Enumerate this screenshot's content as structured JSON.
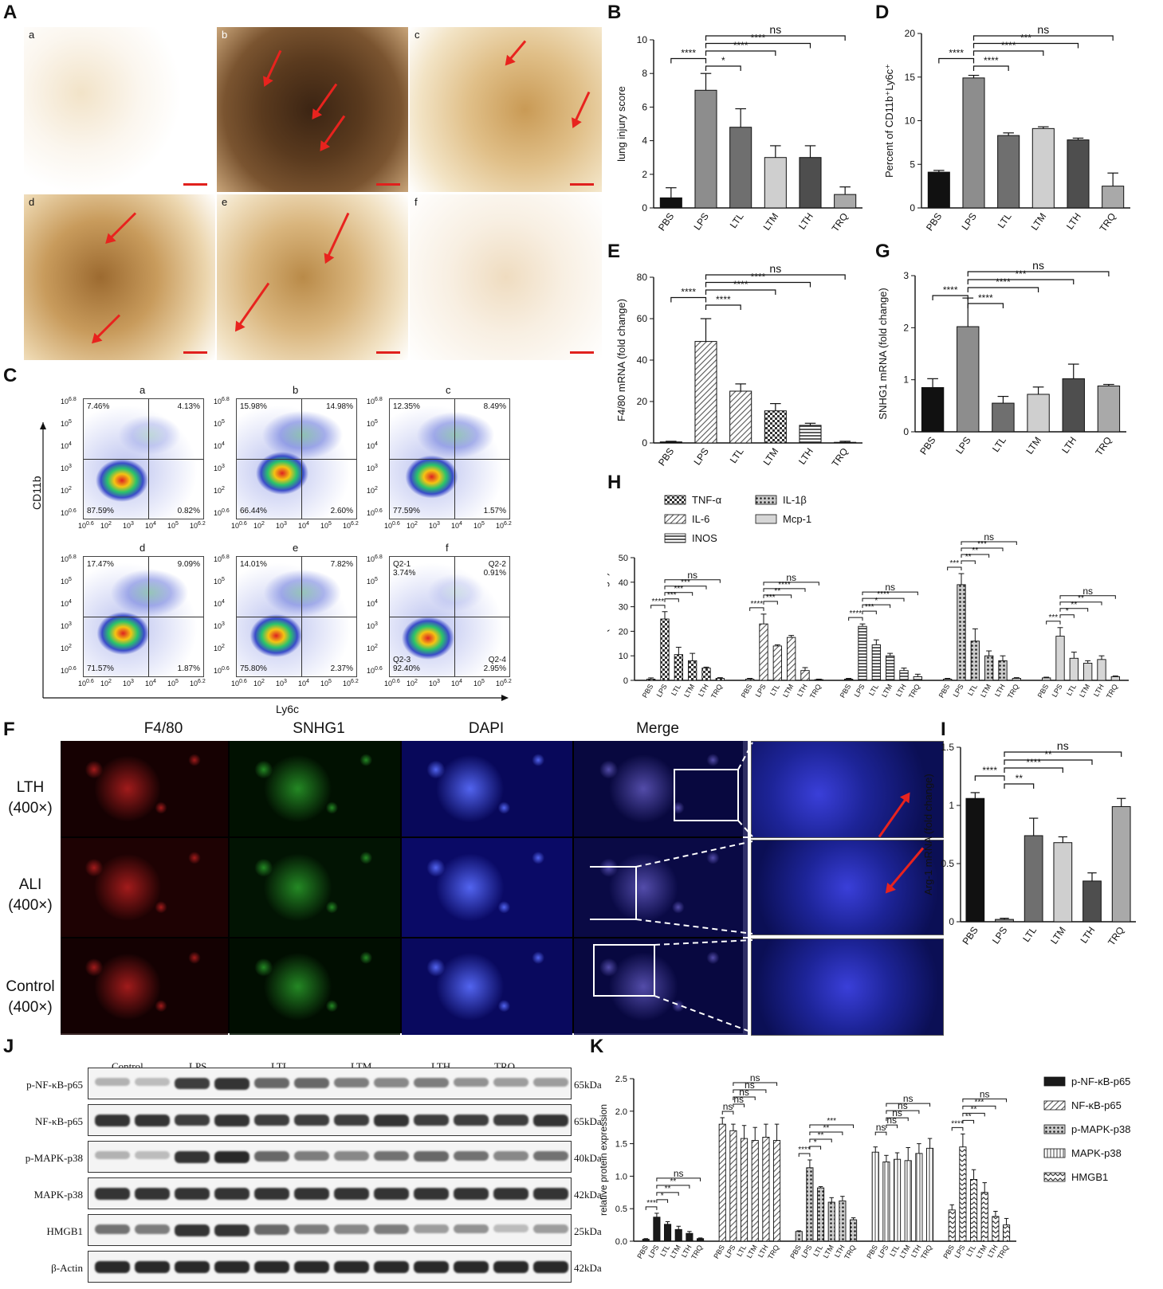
{
  "panels": {
    "A": {
      "label": "A",
      "sublabels": [
        "a",
        "b",
        "c",
        "d",
        "e",
        "f"
      ]
    },
    "B": {
      "label": "B"
    },
    "C": {
      "label": "C",
      "sublabels": [
        "a",
        "b",
        "c",
        "d",
        "e",
        "f"
      ],
      "ylabel": "CD11b",
      "xlabel": "Ly6c",
      "quadrants": [
        {
          "ul": "7.46%",
          "ur": "4.13%",
          "ll": "87.59%",
          "lr": "0.82%"
        },
        {
          "ul": "15.98%",
          "ur": "14.98%",
          "ll": "66.44%",
          "lr": "2.60%"
        },
        {
          "ul": "12.35%",
          "ur": "8.49%",
          "ll": "77.59%",
          "lr": "1.57%"
        },
        {
          "ul": "17.47%",
          "ur": "9.09%",
          "ll": "71.57%",
          "lr": "1.87%"
        },
        {
          "ul": "14.01%",
          "ur": "7.82%",
          "ll": "75.80%",
          "lr": "2.37%"
        },
        {
          "ul": "Q2-1\n3.74%",
          "ur": "Q2-2\n0.91%",
          "ll": "Q2-3\n92.40%",
          "lr": "Q2-4\n2.95%"
        }
      ],
      "yticks": [
        "10",
        "10",
        "10",
        "10",
        "10",
        "10"
      ],
      "xticks": [
        "10",
        "10",
        "10",
        "10",
        "10",
        "10"
      ]
    },
    "D": {
      "label": "D"
    },
    "E": {
      "label": "E"
    },
    "F": {
      "label": "F",
      "columns": [
        "F4/80",
        "SNHG1",
        "DAPI",
        "Merge"
      ],
      "rows": [
        {
          "name": "LTH",
          "mag": "(400×)"
        },
        {
          "name": "ALI",
          "mag": "(400×)"
        },
        {
          "name": "Control",
          "mag": "(400×)"
        }
      ]
    },
    "G": {
      "label": "G"
    },
    "H": {
      "label": "H"
    },
    "I": {
      "label": "I"
    },
    "J": {
      "label": "J",
      "groups": [
        "Control",
        "LPS",
        "LTL",
        "LTM",
        "LTH",
        "TRQ"
      ],
      "rows": [
        {
          "name": "p-NF-κB-p65",
          "kda": "65kDa"
        },
        {
          "name": "NF-κB-p65",
          "kda": "65kDa"
        },
        {
          "name": "p-MAPK-p38",
          "kda": "40kDa"
        },
        {
          "name": "MAPK-p38",
          "kda": "42kDa"
        },
        {
          "name": "HMGB1",
          "kda": "25kDa"
        },
        {
          "name": "β-Actin",
          "kda": "42kDa"
        }
      ]
    },
    "K": {
      "label": "K"
    }
  },
  "chart_data": [
    {
      "id": "B",
      "type": "bar",
      "categories": [
        "PBS",
        "LPS",
        "LTL",
        "LTM",
        "LTH",
        "TRQ"
      ],
      "values": [
        0.6,
        7.0,
        4.8,
        3.0,
        3.0,
        0.8
      ],
      "errors": [
        0.6,
        1.0,
        1.1,
        0.7,
        0.7,
        0.45
      ],
      "ylabel": "lung injury score",
      "ylim": [
        0,
        10
      ],
      "yticks": [
        0,
        2,
        4,
        6,
        8,
        10
      ],
      "colors": [
        "#111111",
        "#8c8c8c",
        "#6e6e6e",
        "#d0d0d0",
        "#505050",
        "#a8a8a8"
      ],
      "sig": [
        {
          "from": 1,
          "to": 5,
          "text": "ns"
        },
        {
          "from": 1,
          "to": 4,
          "text": "****"
        },
        {
          "from": 1,
          "to": 3,
          "text": "****"
        },
        {
          "from": 0,
          "to": 1,
          "text": "****"
        },
        {
          "from": 1,
          "to": 2,
          "text": "*"
        }
      ]
    },
    {
      "id": "D",
      "type": "bar",
      "categories": [
        "PBS",
        "LPS",
        "LTL",
        "LTM",
        "LTH",
        "TRQ"
      ],
      "values": [
        4.1,
        14.9,
        8.3,
        9.1,
        7.8,
        2.5
      ],
      "errors": [
        0.2,
        0.3,
        0.3,
        0.2,
        0.2,
        1.5
      ],
      "ylabel": "Percent of CD11b⁺Ly6c⁺",
      "ylim": [
        0,
        20
      ],
      "yticks": [
        0,
        5,
        10,
        15,
        20
      ],
      "colors": [
        "#111111",
        "#8c8c8c",
        "#6e6e6e",
        "#d0d0d0",
        "#505050",
        "#a8a8a8"
      ],
      "sig": [
        {
          "from": 1,
          "to": 5,
          "text": "ns"
        },
        {
          "from": 1,
          "to": 4,
          "text": "***"
        },
        {
          "from": 1,
          "to": 3,
          "text": "****"
        },
        {
          "from": 0,
          "to": 1,
          "text": "****"
        },
        {
          "from": 1,
          "to": 2,
          "text": "****"
        }
      ]
    },
    {
      "id": "E",
      "type": "bar",
      "categories": [
        "PBS",
        "LPS",
        "LTL",
        "LTM",
        "LTH",
        "TRQ"
      ],
      "values": [
        0.5,
        49,
        25,
        15.5,
        8.5,
        0.3
      ],
      "errors": [
        0.3,
        11,
        3.5,
        3.5,
        1,
        0.5
      ],
      "ylabel": "F4/80 mRNA (fold change)",
      "ylim": [
        0,
        80
      ],
      "yticks": [
        0,
        20,
        40,
        60,
        80
      ],
      "colors": [
        "#111111",
        "#8c8c8c",
        "#6e6e6e",
        "#d0d0d0",
        "#505050",
        "#a8a8a8"
      ],
      "sig": [
        {
          "from": 1,
          "to": 5,
          "text": "ns"
        },
        {
          "from": 1,
          "to": 4,
          "text": "****"
        },
        {
          "from": 1,
          "to": 3,
          "text": "****"
        },
        {
          "from": 0,
          "to": 1,
          "text": "****"
        },
        {
          "from": 1,
          "to": 2,
          "text": "****"
        }
      ]
    },
    {
      "id": "G",
      "type": "bar",
      "categories": [
        "PBS",
        "LPS",
        "LTL",
        "LTM",
        "LTH",
        "TRQ"
      ],
      "values": [
        0.85,
        2.02,
        0.55,
        0.72,
        1.02,
        0.88
      ],
      "errors": [
        0.17,
        0.55,
        0.13,
        0.14,
        0.28,
        0.03
      ],
      "ylabel": "SNHG1 mRNA (fold change)",
      "ylim": [
        0,
        3
      ],
      "yticks": [
        0,
        1,
        2,
        3
      ],
      "colors": [
        "#111111",
        "#8c8c8c",
        "#6e6e6e",
        "#d0d0d0",
        "#505050",
        "#a8a8a8"
      ],
      "sig": [
        {
          "from": 1,
          "to": 5,
          "text": "ns"
        },
        {
          "from": 1,
          "to": 4,
          "text": "***"
        },
        {
          "from": 1,
          "to": 3,
          "text": "****"
        },
        {
          "from": 0,
          "to": 1,
          "text": "****"
        },
        {
          "from": 1,
          "to": 2,
          "text": "****"
        }
      ]
    },
    {
      "id": "I",
      "type": "bar",
      "categories": [
        "PBS",
        "LPS",
        "LTL",
        "LTM",
        "LTH",
        "TRQ"
      ],
      "values": [
        1.06,
        0.02,
        0.74,
        0.68,
        0.35,
        0.99
      ],
      "errors": [
        0.05,
        0.01,
        0.15,
        0.05,
        0.07,
        0.07
      ],
      "ylabel": "Arg-1 mRNA (fold change)",
      "ylim": [
        0,
        1.5
      ],
      "yticks": [
        0.0,
        0.5,
        1.0,
        1.5
      ],
      "colors": [
        "#111111",
        "#8c8c8c",
        "#6e6e6e",
        "#d0d0d0",
        "#505050",
        "#a8a8a8"
      ],
      "sig": [
        {
          "from": 1,
          "to": 5,
          "text": "ns"
        },
        {
          "from": 1,
          "to": 4,
          "text": "**"
        },
        {
          "from": 1,
          "to": 3,
          "text": "****"
        },
        {
          "from": 0,
          "to": 1,
          "text": "****"
        },
        {
          "from": 1,
          "to": 2,
          "text": "**"
        }
      ]
    },
    {
      "id": "H",
      "type": "bar",
      "categories": [
        "PBS",
        "LPS",
        "LTL",
        "LTM",
        "LTH",
        "TRQ"
      ],
      "ylabel": "mRNA (fold change)",
      "ylim": [
        0,
        50
      ],
      "yticks": [
        0,
        10,
        20,
        30,
        40,
        50
      ],
      "series": [
        {
          "name": "TNF-α",
          "values": [
            0.5,
            25,
            10.5,
            8,
            5,
            0.8
          ],
          "errors": [
            0.5,
            3,
            3,
            3,
            0.4,
            0.3
          ]
        },
        {
          "name": "IL-6",
          "values": [
            0.5,
            23,
            14,
            17.5,
            4,
            0.3
          ],
          "errors": [
            0.3,
            4,
            0.5,
            0.8,
            1.2,
            0.2
          ]
        },
        {
          "name": "INOS",
          "values": [
            0.5,
            22,
            14.5,
            10,
            4,
            1.5
          ],
          "errors": [
            0.3,
            1,
            2,
            1,
            1,
            1
          ]
        },
        {
          "name": "IL-1β",
          "values": [
            0.5,
            39,
            16,
            10,
            8,
            0.8
          ],
          "errors": [
            0.3,
            4.5,
            5,
            2,
            2,
            0.3
          ]
        },
        {
          "name": "Mcp-1",
          "values": [
            1,
            18,
            9,
            7,
            8.5,
            1.5
          ],
          "errors": [
            0.3,
            3.5,
            2.5,
            1,
            1.5,
            0.3
          ]
        }
      ],
      "sig_sets": [
        [
          "****",
          "***",
          "***",
          "***",
          "ns"
        ],
        [
          "****",
          "***",
          "**",
          "****",
          "ns"
        ],
        [
          "****",
          "***",
          "*",
          "****",
          "ns"
        ],
        [
          "***",
          "**",
          "**",
          "***",
          "ns"
        ],
        [
          "***",
          "*",
          "**",
          "**",
          "ns"
        ]
      ]
    },
    {
      "id": "K",
      "type": "bar",
      "categories": [
        "PBS",
        "LPS",
        "LTL",
        "LTM",
        "LTH",
        "TRQ"
      ],
      "ylabel": "relative protein expression",
      "ylim": [
        0,
        2.5
      ],
      "yticks": [
        0.0,
        0.5,
        1.0,
        1.5,
        2.0,
        2.5
      ],
      "series": [
        {
          "name": "p-NF-κB-p65",
          "values": [
            0.03,
            0.37,
            0.26,
            0.18,
            0.12,
            0.04
          ],
          "errors": [
            0.01,
            0.06,
            0.04,
            0.05,
            0.03,
            0.01
          ]
        },
        {
          "name": "NF-κB-p65",
          "values": [
            1.8,
            1.7,
            1.58,
            1.55,
            1.6,
            1.55
          ],
          "errors": [
            0.1,
            0.1,
            0.2,
            0.2,
            0.2,
            0.25
          ]
        },
        {
          "name": "p-MAPK-p38",
          "values": [
            0.15,
            1.13,
            0.82,
            0.6,
            0.62,
            0.33
          ],
          "errors": [
            0.01,
            0.12,
            0.02,
            0.07,
            0.07,
            0.03
          ]
        },
        {
          "name": "MAPK-p38",
          "values": [
            1.37,
            1.22,
            1.26,
            1.24,
            1.35,
            1.43
          ],
          "errors": [
            0.08,
            0.1,
            0.1,
            0.2,
            0.15,
            0.15
          ]
        },
        {
          "name": "HMGB1",
          "values": [
            0.48,
            1.45,
            0.95,
            0.75,
            0.38,
            0.25
          ],
          "errors": [
            0.08,
            0.2,
            0.15,
            0.15,
            0.08,
            0.1
          ]
        }
      ],
      "sig_sets": [
        [
          "***",
          "*",
          "**",
          "**",
          "ns"
        ],
        [
          "ns",
          "ns",
          "ns",
          "ns",
          "ns"
        ],
        [
          "****",
          "*",
          "**",
          "**",
          "***"
        ],
        [
          "ns",
          "ns",
          "ns",
          "ns",
          "ns"
        ],
        [
          "****",
          "**",
          "**",
          "***",
          "ns"
        ]
      ]
    }
  ]
}
